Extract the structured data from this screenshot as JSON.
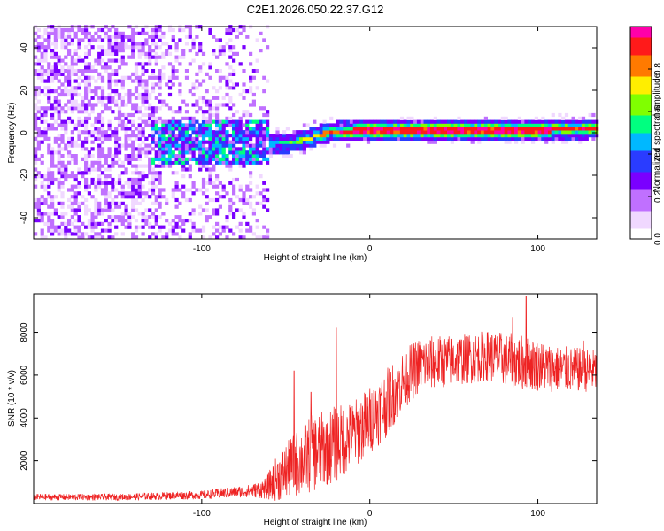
{
  "title": "C2E1.2026.050.22.37.G12",
  "colors": {
    "snr_line": "#ee2222",
    "colormap": [
      "#ffffff",
      "#f0d8ff",
      "#c070ff",
      "#7a00ff",
      "#2a3cff",
      "#00b8ff",
      "#00ff80",
      "#80ff00",
      "#ffee00",
      "#ff7a00",
      "#ff1a1a",
      "#ff00aa"
    ]
  },
  "chart_data": [
    {
      "type": "heatmap",
      "name": "spectrogram",
      "xlabel": "Height of straight line (km)",
      "ylabel": "Frequency (Hz)",
      "xlim": [
        -200,
        135
      ],
      "ylim": [
        -50,
        50
      ],
      "xticks": [
        -100,
        0,
        100
      ],
      "xtick_labels": [
        "-100",
        "0",
        "100"
      ],
      "yticks": [
        -40,
        -20,
        0,
        20,
        40
      ],
      "ytick_labels": [
        "-40",
        "-20",
        "0",
        "20",
        "40"
      ],
      "colorbar": {
        "label": "Normalized spectral amplitude",
        "range": [
          0,
          1
        ],
        "ticks": [
          0.0,
          0.2,
          0.4,
          0.6,
          0.8
        ],
        "tick_labels": [
          "0.0",
          "0.2",
          "0.4",
          "0.6",
          "0.8"
        ]
      },
      "features": {
        "noise_region_x": [
          -200,
          -60
        ],
        "signal_onset_x": -60,
        "burst_region_x": [
          -130,
          -60
        ],
        "ridge_points": [
          [
            -62,
            -6
          ],
          [
            -50,
            -5.5
          ],
          [
            -40,
            -4
          ],
          [
            -30,
            -1.5
          ],
          [
            -20,
            0
          ],
          [
            0,
            0.5
          ],
          [
            50,
            0.5
          ],
          [
            100,
            0.5
          ],
          [
            135,
            1
          ]
        ]
      }
    },
    {
      "type": "line",
      "name": "snr",
      "xlabel": "Height of straight line (km)",
      "ylabel": "SNR (10 * v/v)",
      "xlim": [
        -200,
        135
      ],
      "ylim": [
        0,
        9800
      ],
      "xticks": [
        -100,
        0,
        100
      ],
      "xtick_labels": [
        "-100",
        "0",
        "100"
      ],
      "yticks": [
        2000,
        4000,
        6000,
        8000
      ],
      "ytick_labels": [
        "2000",
        "4000",
        "6000",
        "8000"
      ],
      "series": [
        {
          "name": "SNR",
          "x": [
            -200,
            -150,
            -100,
            -70,
            -62,
            -55,
            -45,
            -35,
            -20,
            -10,
            0,
            10,
            20,
            30,
            50,
            70,
            90,
            110,
            135
          ],
          "y": [
            300,
            300,
            400,
            600,
            700,
            1200,
            1800,
            2300,
            2800,
            3200,
            3900,
            4700,
            5800,
            6500,
            6700,
            6900,
            6600,
            6300,
            6200
          ],
          "spread": [
            150,
            150,
            200,
            300,
            500,
            1100,
            1500,
            1800,
            1800,
            1600,
            1600,
            1600,
            1400,
            1300,
            1200,
            1200,
            1300,
            1100,
            1000
          ]
        }
      ],
      "spikes": [
        [
          -20,
          8200
        ],
        [
          -35,
          5200
        ],
        [
          -45,
          6200
        ],
        [
          93,
          9700
        ],
        [
          85,
          8700
        ],
        [
          127,
          7600
        ]
      ]
    }
  ]
}
